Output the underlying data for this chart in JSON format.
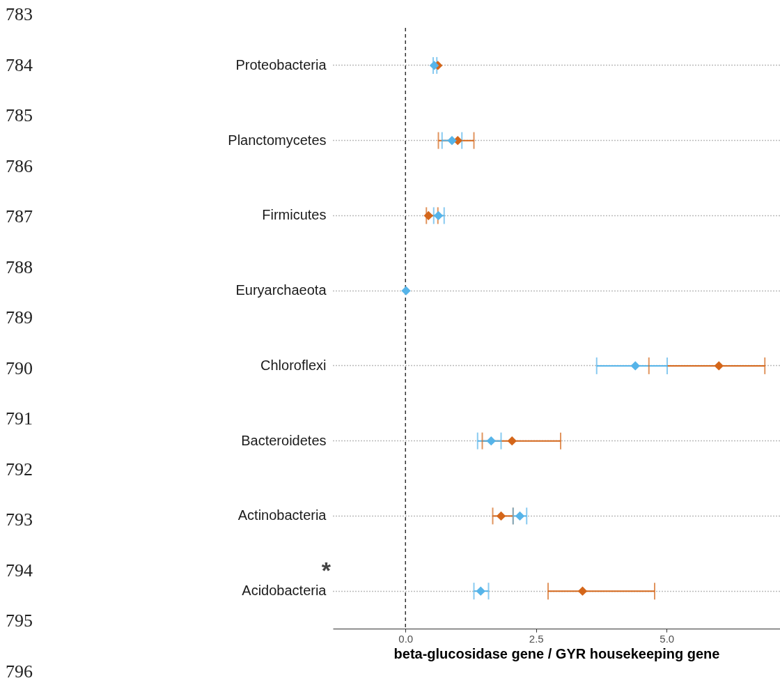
{
  "chart_data": {
    "type": "scatter",
    "orientation": "horizontal",
    "xlabel": "beta-glucosidase gene / GYR housekeeping gene",
    "categories": [
      "Proteobacteria",
      "Planctomycetes",
      "Firmicutes",
      "Euryarchaeota",
      "Chloroflexi",
      "Bacteroidetes",
      "Actinobacteria",
      "Acidobacteria"
    ],
    "series": [
      {
        "color": "#d4661a",
        "values": [
          0.62,
          1.0,
          0.44,
          null,
          6.0,
          2.04,
          1.83,
          3.39
        ],
        "errors": [
          null,
          [
            0.63,
            1.31
          ],
          [
            0.4,
            0.62
          ],
          null,
          [
            4.66,
            6.88
          ],
          [
            1.47,
            2.97
          ],
          [
            1.67,
            2.06
          ],
          [
            2.73,
            4.77
          ]
        ]
      },
      {
        "color": "#56b4e9",
        "values": [
          0.55,
          0.89,
          0.63,
          0.01,
          4.4,
          1.64,
          2.19,
          1.44
        ],
        "errors": [
          [
            0.53,
            0.6
          ],
          [
            0.7,
            1.08
          ],
          [
            0.54,
            0.74
          ],
          null,
          [
            3.66,
            5.01
          ],
          [
            1.38,
            1.83
          ],
          [
            2.06,
            2.32
          ],
          [
            1.31,
            1.59
          ]
        ]
      }
    ],
    "xlim": [
      -1.39,
      7.17
    ],
    "xticks": [
      {
        "value": 0,
        "label": "0.0"
      },
      2.5,
      {
        "value": 5,
        "label": "5.0"
      }
    ],
    "ref_lines": [
      {
        "axis": "x",
        "value": 0,
        "line_style": "dashed",
        "color": "#333333"
      }
    ],
    "grid": "y",
    "marker": "diamond",
    "annotations": [
      "783",
      "784",
      "785",
      "786",
      "787",
      "788",
      "789",
      "790",
      "791",
      "792",
      "793",
      "794",
      "795",
      "796",
      "*"
    ]
  }
}
